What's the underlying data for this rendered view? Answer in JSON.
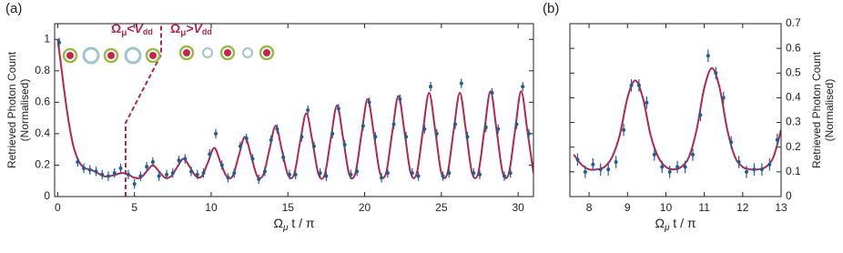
{
  "chart_data": [
    {
      "type": "fit_errorbar",
      "panel_label": "(a)",
      "x_label": {
        "symbol": "Ω",
        "sub": "μ",
        "rest": " t / π"
      },
      "y_label": [
        "Retrieved Photon Count",
        "(Normalised)"
      ],
      "annotations": [
        {
          "main1": "Ω",
          "sub1": "μ",
          "rel": "<",
          "main2": "V",
          "sub2": "dd"
        },
        {
          "main1": "Ω",
          "sub1": "μ",
          "rel": ">",
          "main2": "V",
          "sub2": "dd"
        }
      ],
      "xlim": [
        -0.2,
        31
      ],
      "ylim": [
        0,
        1.1
      ],
      "xticks": [
        0,
        5,
        10,
        15,
        20,
        25,
        30
      ],
      "yticks": [
        0,
        0.2,
        0.4,
        0.6,
        0.8,
        1
      ],
      "series": [
        {
          "color": "#b4264f",
          "x": [
            0,
            0.2,
            0.6,
            1.0,
            1.4,
            1.8,
            2.2,
            2.6,
            3.0,
            3.4,
            3.8,
            4.2,
            4.6,
            5.0,
            5.4,
            5.8,
            6.2,
            6.6,
            7.0,
            7.4,
            7.8,
            8.2,
            8.6,
            9.0,
            9.4,
            9.8,
            10.2,
            10.6,
            11.0,
            11.4,
            11.8,
            12.2,
            12.6,
            13.0,
            13.4,
            13.8,
            14.2,
            14.6,
            15.0,
            15.4,
            15.8,
            16.2,
            16.6,
            17.0,
            17.4,
            17.8,
            18.2,
            18.6,
            19.0,
            19.4,
            19.8,
            20.2,
            20.6,
            21.0,
            21.4,
            21.8,
            22.2,
            22.6,
            23.0,
            23.4,
            23.8,
            24.2,
            24.6,
            25.0,
            25.4,
            25.8,
            26.2,
            26.6,
            27.0,
            27.4,
            27.8,
            28.2,
            28.6,
            29.0,
            29.4,
            29.8,
            30.2,
            30.6,
            31.0
          ],
          "values": [
            1.0,
            0.85,
            0.55,
            0.33,
            0.22,
            0.18,
            0.17,
            0.15,
            0.13,
            0.13,
            0.14,
            0.15,
            0.14,
            0.12,
            0.12,
            0.16,
            0.2,
            0.16,
            0.12,
            0.13,
            0.19,
            0.24,
            0.19,
            0.13,
            0.13,
            0.22,
            0.31,
            0.22,
            0.13,
            0.13,
            0.26,
            0.38,
            0.26,
            0.13,
            0.14,
            0.3,
            0.45,
            0.3,
            0.14,
            0.14,
            0.35,
            0.53,
            0.35,
            0.14,
            0.14,
            0.37,
            0.58,
            0.37,
            0.14,
            0.15,
            0.4,
            0.62,
            0.4,
            0.15,
            0.15,
            0.41,
            0.64,
            0.41,
            0.15,
            0.15,
            0.42,
            0.66,
            0.42,
            0.15,
            0.15,
            0.42,
            0.66,
            0.42,
            0.15,
            0.15,
            0.42,
            0.67,
            0.42,
            0.15,
            0.15,
            0.42,
            0.67,
            0.42,
            0.15
          ]
        },
        {
          "color": "#1f5f96",
          "error": 0.03,
          "x": [
            0.1,
            1.3,
            1.7,
            2.1,
            2.5,
            2.9,
            3.3,
            3.7,
            4.1,
            4.6,
            5.0,
            5.4,
            5.8,
            6.2,
            6.6,
            7.1,
            7.5,
            7.9,
            8.3,
            8.7,
            9.1,
            9.5,
            9.9,
            10.3,
            10.7,
            11.1,
            11.5,
            11.9,
            12.3,
            12.7,
            13.1,
            13.5,
            13.9,
            14.3,
            14.7,
            15.1,
            15.5,
            15.9,
            16.3,
            16.7,
            17.1,
            17.5,
            17.9,
            18.3,
            18.7,
            19.1,
            19.5,
            19.9,
            20.3,
            20.7,
            21.1,
            21.5,
            21.9,
            22.3,
            22.7,
            23.1,
            23.5,
            23.9,
            24.3,
            24.7,
            25.1,
            25.5,
            25.9,
            26.3,
            26.7,
            27.1,
            27.5,
            27.9,
            28.3,
            28.7,
            29.1,
            29.5,
            29.9,
            30.3,
            30.7
          ],
          "values": [
            0.98,
            0.22,
            0.18,
            0.17,
            0.16,
            0.14,
            0.13,
            0.15,
            0.18,
            0.14,
            0.08,
            0.13,
            0.19,
            0.22,
            0.13,
            0.14,
            0.15,
            0.23,
            0.24,
            0.16,
            0.14,
            0.15,
            0.27,
            0.4,
            0.2,
            0.12,
            0.15,
            0.32,
            0.37,
            0.24,
            0.11,
            0.16,
            0.36,
            0.43,
            0.25,
            0.14,
            0.14,
            0.38,
            0.55,
            0.32,
            0.15,
            0.13,
            0.4,
            0.56,
            0.33,
            0.14,
            0.16,
            0.45,
            0.6,
            0.38,
            0.12,
            0.15,
            0.46,
            0.62,
            0.38,
            0.15,
            0.13,
            0.43,
            0.7,
            0.4,
            0.13,
            0.15,
            0.46,
            0.72,
            0.38,
            0.15,
            0.14,
            0.44,
            0.66,
            0.43,
            0.13,
            0.15,
            0.46,
            0.7,
            0.4
          ]
        }
      ]
    },
    {
      "type": "fit_errorbar",
      "panel_label": "(b)",
      "x_label": {
        "symbol": "Ω",
        "sub": "μ",
        "rest": " t / π"
      },
      "y_label": [
        "Retrieved Photon Count",
        "(Normalised)"
      ],
      "xlim": [
        7.5,
        13
      ],
      "ylim": [
        0,
        0.7
      ],
      "xticks": [
        8,
        9,
        10,
        11,
        12,
        13
      ],
      "yticks": [
        0,
        0.1,
        0.2,
        0.3,
        0.4,
        0.5,
        0.6,
        0.7
      ],
      "series": [
        {
          "color": "#b4264f",
          "x": [
            7.6,
            7.8,
            8.0,
            8.2,
            8.4,
            8.6,
            8.8,
            9.0,
            9.2,
            9.4,
            9.6,
            9.8,
            10.0,
            10.2,
            10.4,
            10.6,
            10.8,
            11.0,
            11.2,
            11.4,
            11.6,
            11.8,
            12.0,
            12.2,
            12.4,
            12.6,
            12.8,
            13.0
          ],
          "values": [
            0.17,
            0.13,
            0.11,
            0.11,
            0.12,
            0.16,
            0.25,
            0.4,
            0.47,
            0.4,
            0.25,
            0.16,
            0.12,
            0.11,
            0.12,
            0.16,
            0.27,
            0.44,
            0.52,
            0.44,
            0.27,
            0.16,
            0.12,
            0.11,
            0.11,
            0.12,
            0.16,
            0.27
          ]
        },
        {
          "color": "#1f5f96",
          "error": 0.025,
          "x": [
            7.7,
            7.9,
            8.1,
            8.3,
            8.5,
            8.7,
            8.9,
            9.1,
            9.3,
            9.5,
            9.7,
            9.9,
            10.1,
            10.3,
            10.5,
            10.7,
            10.9,
            11.1,
            11.3,
            11.5,
            11.7,
            11.9,
            12.1,
            12.3,
            12.5,
            12.7,
            12.9
          ],
          "values": [
            0.15,
            0.1,
            0.13,
            0.11,
            0.11,
            0.14,
            0.27,
            0.45,
            0.45,
            0.38,
            0.17,
            0.12,
            0.1,
            0.12,
            0.12,
            0.17,
            0.33,
            0.57,
            0.5,
            0.4,
            0.22,
            0.14,
            0.1,
            0.11,
            0.11,
            0.13,
            0.23
          ]
        }
      ]
    }
  ]
}
